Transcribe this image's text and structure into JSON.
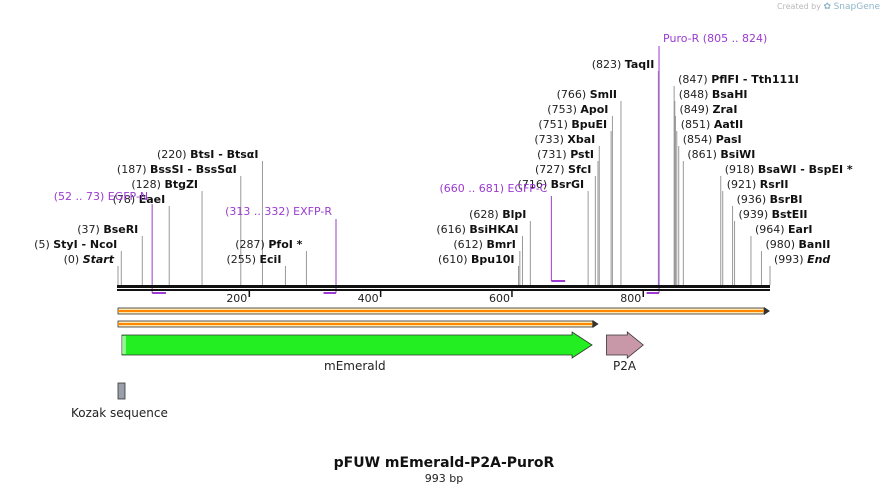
{
  "credit": {
    "prefix": "Created by",
    "brand": "SnapGene"
  },
  "title": "pFUW mEmerald-P2A-PuroR",
  "length_label": "993 bp",
  "sequence_length": 993,
  "ticks": [
    "200",
    "400",
    "600",
    "800"
  ],
  "colors": {
    "primer": "#9b3bd1",
    "orf": "#ff8800",
    "mEmerald": "#22ee22",
    "p2a": "#c898a8",
    "kozak": "#9aa0aa"
  },
  "enzymes": [
    {
      "pos": "(0)",
      "name": "Start",
      "italic": true,
      "bp": 0,
      "row": 0
    },
    {
      "pos": "(5)",
      "name": "StyI  -  NcoI",
      "bp": 5,
      "row": 1
    },
    {
      "pos": "(37)",
      "name": "BseRI",
      "bp": 37,
      "row": 2
    },
    {
      "pos": "(78)",
      "name": "EaeI",
      "bp": 78,
      "row": 4
    },
    {
      "pos": "(128)",
      "name": "BtgZI",
      "bp": 128,
      "row": 5
    },
    {
      "pos": "(187)",
      "name": "BssSI  -  BssSαI",
      "bp": 187,
      "row": 6
    },
    {
      "pos": "(220)",
      "name": "BtsI  -  BtsαI",
      "bp": 220,
      "row": 7
    },
    {
      "pos": "(255)",
      "name": "EciI",
      "bp": 255,
      "row": 0
    },
    {
      "pos": "(287)",
      "name": "PfoI *",
      "bp": 287,
      "row": 1
    },
    {
      "pos": "(610)",
      "name": "Bpu10I",
      "bp": 610,
      "row": 0
    },
    {
      "pos": "(612)",
      "name": "BmrI",
      "bp": 612,
      "row": 1
    },
    {
      "pos": "(616)",
      "name": "BsiHKAI",
      "bp": 616,
      "row": 2
    },
    {
      "pos": "(628)",
      "name": "BlpI",
      "bp": 628,
      "row": 3
    },
    {
      "pos": "(716)",
      "name": "BsrGI",
      "bp": 716,
      "row": 5
    },
    {
      "pos": "(727)",
      "name": "SfcI",
      "bp": 727,
      "row": 6
    },
    {
      "pos": "(731)",
      "name": "PstI",
      "bp": 731,
      "row": 7
    },
    {
      "pos": "(733)",
      "name": "XbaI",
      "bp": 733,
      "row": 8
    },
    {
      "pos": "(751)",
      "name": "BpuEI",
      "bp": 751,
      "row": 9
    },
    {
      "pos": "(753)",
      "name": "ApoI",
      "bp": 753,
      "row": 10
    },
    {
      "pos": "(766)",
      "name": "SmlI",
      "bp": 766,
      "row": 11
    },
    {
      "pos": "(823)",
      "name": "TaqII",
      "bp": 823,
      "row": 13
    },
    {
      "pos": "(847)",
      "name": "PflFI  -  Tth111I",
      "bp": 847,
      "row": 12,
      "right": true
    },
    {
      "pos": "(848)",
      "name": "BsaHI",
      "bp": 848,
      "row": 11,
      "right": true
    },
    {
      "pos": "(849)",
      "name": "ZraI",
      "bp": 849,
      "row": 10,
      "right": true
    },
    {
      "pos": "(851)",
      "name": "AatII",
      "bp": 851,
      "row": 9,
      "right": true
    },
    {
      "pos": "(854)",
      "name": "PasI",
      "bp": 854,
      "row": 8,
      "right": true
    },
    {
      "pos": "(861)",
      "name": "BsiWI",
      "bp": 861,
      "row": 7,
      "right": true
    },
    {
      "pos": "(918)",
      "name": "BsaWI  -  BspEI *",
      "bp": 918,
      "row": 6,
      "right": true
    },
    {
      "pos": "(921)",
      "name": "RsrII",
      "bp": 921,
      "row": 5,
      "right": true
    },
    {
      "pos": "(936)",
      "name": "BsrBI",
      "bp": 936,
      "row": 4,
      "right": true
    },
    {
      "pos": "(939)",
      "name": "BstEII",
      "bp": 939,
      "row": 3,
      "right": true
    },
    {
      "pos": "(964)",
      "name": "EarI",
      "bp": 964,
      "row": 2,
      "right": true
    },
    {
      "pos": "(980)",
      "name": "BanII",
      "bp": 980,
      "row": 1,
      "right": true
    },
    {
      "pos": "(993)",
      "name": "End",
      "italic": true,
      "bp": 993,
      "row": 0,
      "right": true
    }
  ],
  "primers": [
    {
      "range": "(52 .. 73)",
      "name": "EGFP-N",
      "start": 52,
      "end": 73,
      "dir": "fwd"
    },
    {
      "range": "(313 .. 332)",
      "name": "EXFP-R",
      "start": 313,
      "end": 332,
      "dir": "rev"
    },
    {
      "range": "(660 .. 681)",
      "name": "EGFP-C",
      "start": 660,
      "end": 681,
      "dir": "fwd"
    },
    {
      "range": "(805 .. 824)",
      "name": "Puro-R",
      "start": 805,
      "end": 824,
      "dir": "rev"
    }
  ],
  "features": {
    "mEmerald": {
      "label": "mEmerald",
      "start": 6,
      "end": 722
    },
    "p2a": {
      "label": "P2A",
      "start": 744,
      "end": 800
    },
    "kozak": {
      "label": "Kozak sequence",
      "start": 0,
      "end": 5
    },
    "orf1": {
      "start": 0,
      "end": 993
    },
    "orf2": {
      "start": 0,
      "end": 732
    }
  }
}
